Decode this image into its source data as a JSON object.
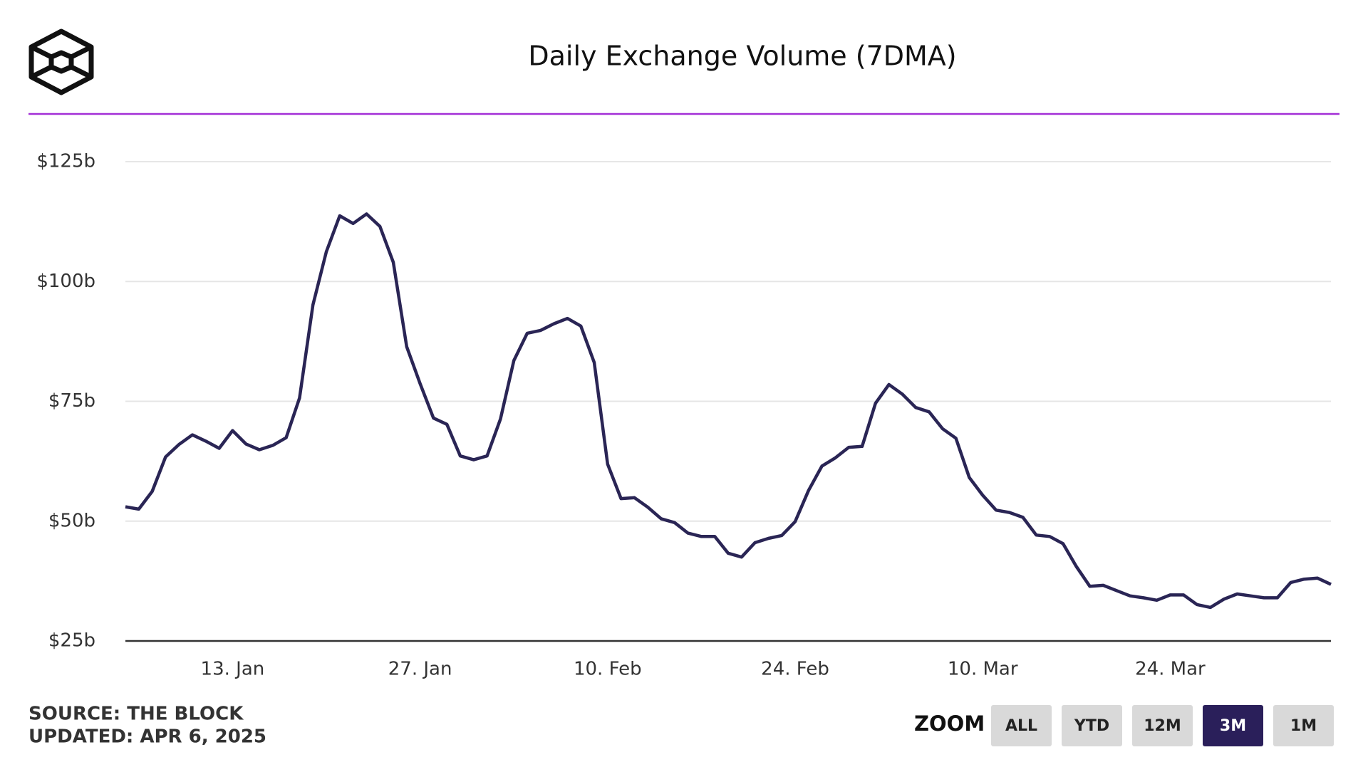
{
  "chart_data": {
    "type": "line",
    "title": "Daily Exchange Volume (7DMA)",
    "categories": [
      null,
      null,
      null,
      null,
      null,
      null,
      null,
      null,
      "13. Jan",
      null,
      null,
      null,
      null,
      null,
      null,
      null,
      null,
      null,
      null,
      null,
      null,
      null,
      "27. Jan",
      null,
      null,
      null,
      null,
      null,
      null,
      null,
      null,
      null,
      null,
      null,
      null,
      null,
      "10. Feb",
      null,
      null,
      null,
      null,
      null,
      null,
      null,
      null,
      null,
      null,
      null,
      null,
      null,
      "24. Feb",
      null,
      null,
      null,
      null,
      null,
      null,
      null,
      null,
      null,
      null,
      null,
      null,
      null,
      "10. Mar",
      null,
      null,
      null,
      null,
      null,
      null,
      null,
      null,
      null,
      null,
      null,
      null,
      null,
      "24. Mar",
      null,
      null,
      null,
      null,
      null,
      null,
      null,
      null,
      null,
      null,
      null,
      null
    ],
    "series": [
      {
        "name": "Daily Exchange Volume",
        "color": "#2a2555",
        "values": [
          53.0,
          52.5,
          56.2,
          63.4,
          66,
          68,
          66.7,
          65.2,
          68.9,
          66.1,
          64.9,
          65.8,
          67.4,
          75.7,
          95.1,
          106.2,
          113.7,
          112.1,
          114.1,
          111.5,
          104,
          86.4,
          78.7,
          71.5,
          70.2,
          63.6,
          62.8,
          63.6,
          71.3,
          83.5,
          89.2,
          89.8,
          91.2,
          92.3,
          90.7,
          83.1,
          61.9,
          54.7,
          54.9,
          52.9,
          50.5,
          49.7,
          47.5,
          46.8,
          46.8,
          43.3,
          42.5,
          45.5,
          46.4,
          47,
          49.9,
          56.4,
          61.5,
          63.2,
          65.4,
          65.6,
          74.6,
          78.5,
          76.5,
          73.7,
          72.8,
          69.3,
          67.3,
          59.1,
          55.4,
          52.3,
          51.8,
          50.8,
          47.1,
          46.8,
          45.3,
          40.5,
          36.4,
          36.6,
          35.5,
          34.4,
          34,
          33.5,
          34.6,
          34.6,
          32.6,
          32,
          33.7,
          34.8,
          34.4,
          34,
          34,
          37.2,
          37.9,
          38.1,
          36.8
        ]
      }
    ],
    "ylim": [
      25,
      125
    ],
    "yticks": [
      {
        "value": 25,
        "label": "$25b"
      },
      {
        "value": 50,
        "label": "$50b"
      },
      {
        "value": 75,
        "label": "$75b"
      },
      {
        "value": 100,
        "label": "$100b"
      },
      {
        "value": 125,
        "label": "$125b"
      }
    ],
    "grid": true
  },
  "footer": {
    "source": "SOURCE: THE BLOCK",
    "updated": "UPDATED: APR 6, 2025"
  },
  "zoom": {
    "label": "ZOOM",
    "buttons": [
      "ALL",
      "YTD",
      "12M",
      "3M",
      "1M"
    ],
    "selected": 3
  }
}
